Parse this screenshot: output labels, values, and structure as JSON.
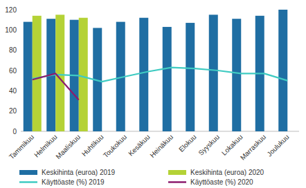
{
  "chart_data": {
    "type": "bar",
    "categories": [
      "Tammikuu",
      "Helmikuu",
      "Maaliskuu",
      "Huhtikuu",
      "Toukokuu",
      "Kesäkuu",
      "Heinäkuu",
      "Elokuu",
      "Syyskuu",
      "Lokakuu",
      "Marraskuu",
      "Joulukuu"
    ],
    "series": [
      {
        "name": "Keskihinta (euroa) 2019",
        "type": "bar",
        "color": "#1f6ea3",
        "values": [
          108,
          111,
          110,
          102,
          108,
          112,
          103,
          107,
          115,
          111,
          114,
          120
        ]
      },
      {
        "name": "Keskihinta (euroa) 2020",
        "type": "bar",
        "color": "#b4d236",
        "values": [
          114,
          115,
          112,
          null,
          null,
          null,
          null,
          null,
          null,
          null,
          null,
          null
        ]
      },
      {
        "name": "Käyttöaste (%) 2019",
        "type": "line",
        "color": "#3fcbc2",
        "values": [
          52,
          56,
          55,
          49,
          54,
          59,
          63,
          62,
          60,
          57,
          57,
          50
        ]
      },
      {
        "name": "Käyttöaste (%) 2020",
        "type": "line",
        "color": "#8c1c6e",
        "values": [
          51,
          57,
          31,
          null,
          null,
          null,
          null,
          null,
          null,
          null,
          null,
          null
        ]
      }
    ],
    "ylim": [
      0,
      120
    ],
    "yticks": [
      0,
      20,
      40,
      60,
      80,
      100,
      120
    ],
    "grid": false,
    "legend": "bottom"
  }
}
